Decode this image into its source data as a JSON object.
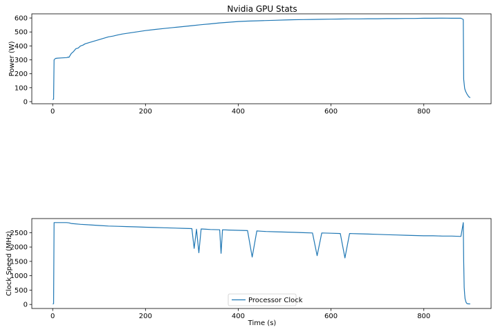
{
  "figure": {
    "title": "Nvidia GPU Stats"
  },
  "chart_data": [
    {
      "type": "line",
      "title": "Nvidia GPU Stats",
      "xlabel": "",
      "ylabel": "Power (W)",
      "xlim": [
        -45,
        945
      ],
      "ylim": [
        -15,
        630
      ],
      "xticks": [
        0,
        200,
        400,
        600,
        800
      ],
      "yticks": [
        0,
        100,
        200,
        300,
        400,
        500,
        600
      ],
      "grid": false,
      "series": [
        {
          "name": "Power",
          "color": "#1f77b4",
          "x": [
            0,
            2,
            3,
            6,
            10,
            20,
            30,
            34,
            35,
            40,
            45,
            50,
            55,
            60,
            65,
            70,
            80,
            90,
            100,
            110,
            120,
            130,
            140,
            150,
            160,
            180,
            200,
            220,
            240,
            260,
            280,
            300,
            320,
            340,
            360,
            380,
            400,
            420,
            440,
            460,
            480,
            500,
            520,
            540,
            560,
            580,
            600,
            620,
            640,
            660,
            680,
            700,
            720,
            740,
            760,
            780,
            800,
            820,
            840,
            860,
            880,
            885,
            886,
            888,
            890,
            893,
            897,
            900
          ],
          "values": [
            15,
            18,
            300,
            310,
            312,
            314,
            316,
            320,
            318,
            345,
            360,
            380,
            385,
            400,
            405,
            415,
            425,
            435,
            445,
            455,
            465,
            470,
            478,
            485,
            490,
            500,
            510,
            518,
            525,
            532,
            538,
            545,
            552,
            558,
            565,
            570,
            575,
            578,
            580,
            582,
            584,
            586,
            588,
            589,
            590,
            591,
            592,
            593,
            594,
            594,
            595,
            595,
            596,
            596,
            597,
            597,
            598,
            598,
            599,
            598,
            598,
            590,
            160,
            95,
            75,
            55,
            35,
            28
          ]
        }
      ],
      "legend": null
    },
    {
      "type": "line",
      "title": "",
      "xlabel": "Time (s)",
      "ylabel": "Clock Speed (MHz)",
      "xlim": [
        -45,
        945
      ],
      "ylim": [
        -140,
        2990
      ],
      "xticks": [
        0,
        200,
        400,
        600,
        800
      ],
      "yticks": [
        0,
        500,
        1000,
        1500,
        2000,
        2500
      ],
      "grid": false,
      "series": [
        {
          "name": "Processor Clock",
          "color": "#1f77b4",
          "x": [
            0,
            2,
            3,
            10,
            20,
            30,
            35,
            40,
            60,
            80,
            100,
            120,
            140,
            160,
            180,
            200,
            220,
            240,
            260,
            280,
            300,
            305,
            310,
            315,
            320,
            330,
            340,
            360,
            363,
            366,
            380,
            400,
            420,
            430,
            440,
            450,
            460,
            480,
            500,
            520,
            540,
            560,
            570,
            580,
            600,
            620,
            630,
            640,
            660,
            680,
            700,
            720,
            740,
            760,
            780,
            800,
            820,
            840,
            860,
            880,
            885,
            886,
            887,
            888,
            889,
            891,
            893,
            897,
            900
          ],
          "values": [
            20,
            25,
            2850,
            2850,
            2850,
            2850,
            2840,
            2820,
            2790,
            2770,
            2750,
            2730,
            2720,
            2710,
            2700,
            2690,
            2680,
            2670,
            2660,
            2650,
            2640,
            1950,
            2620,
            1800,
            2630,
            2620,
            2610,
            2600,
            1780,
            2600,
            2590,
            2580,
            2570,
            1650,
            2560,
            2550,
            2540,
            2530,
            2520,
            2510,
            2500,
            2490,
            1700,
            2490,
            2480,
            2470,
            1620,
            2470,
            2460,
            2450,
            2440,
            2430,
            2420,
            2410,
            2400,
            2390,
            2390,
            2380,
            2380,
            2370,
            2850,
            1500,
            600,
            350,
            200,
            80,
            30,
            20,
            20
          ]
        }
      ],
      "legend": {
        "position": "bottom-center",
        "entries": [
          "Processor Clock"
        ]
      }
    }
  ]
}
